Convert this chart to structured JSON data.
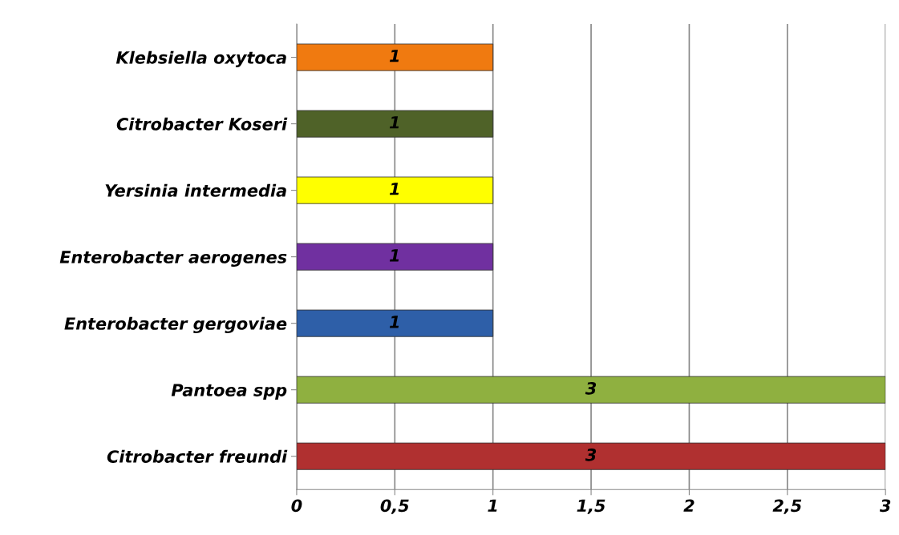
{
  "chart_data": {
    "type": "bar",
    "orientation": "horizontal",
    "categories": [
      "Klebsiella oxytoca",
      "Citrobacter Koseri",
      "Yersinia intermedia",
      "Enterobacter aerogenes",
      "Enterobacter gergoviae",
      "Pantoea spp",
      "Citrobacter freundi"
    ],
    "values": [
      1,
      1,
      1,
      1,
      1,
      3,
      3
    ],
    "colors": [
      "#f07a10",
      "#4f6228",
      "#ffff00",
      "#7030a0",
      "#2e5fa8",
      "#8fb040",
      "#b03030"
    ],
    "xlim": [
      0,
      3
    ],
    "xticks": [
      0,
      {
        "value": 0.5,
        "label": "0,5"
      },
      1,
      {
        "value": 1.5,
        "label": "1,5"
      },
      2,
      {
        "value": 2.5,
        "label": "2,5"
      },
      3
    ],
    "grid": "x",
    "data_labels": true,
    "legend": false
  }
}
